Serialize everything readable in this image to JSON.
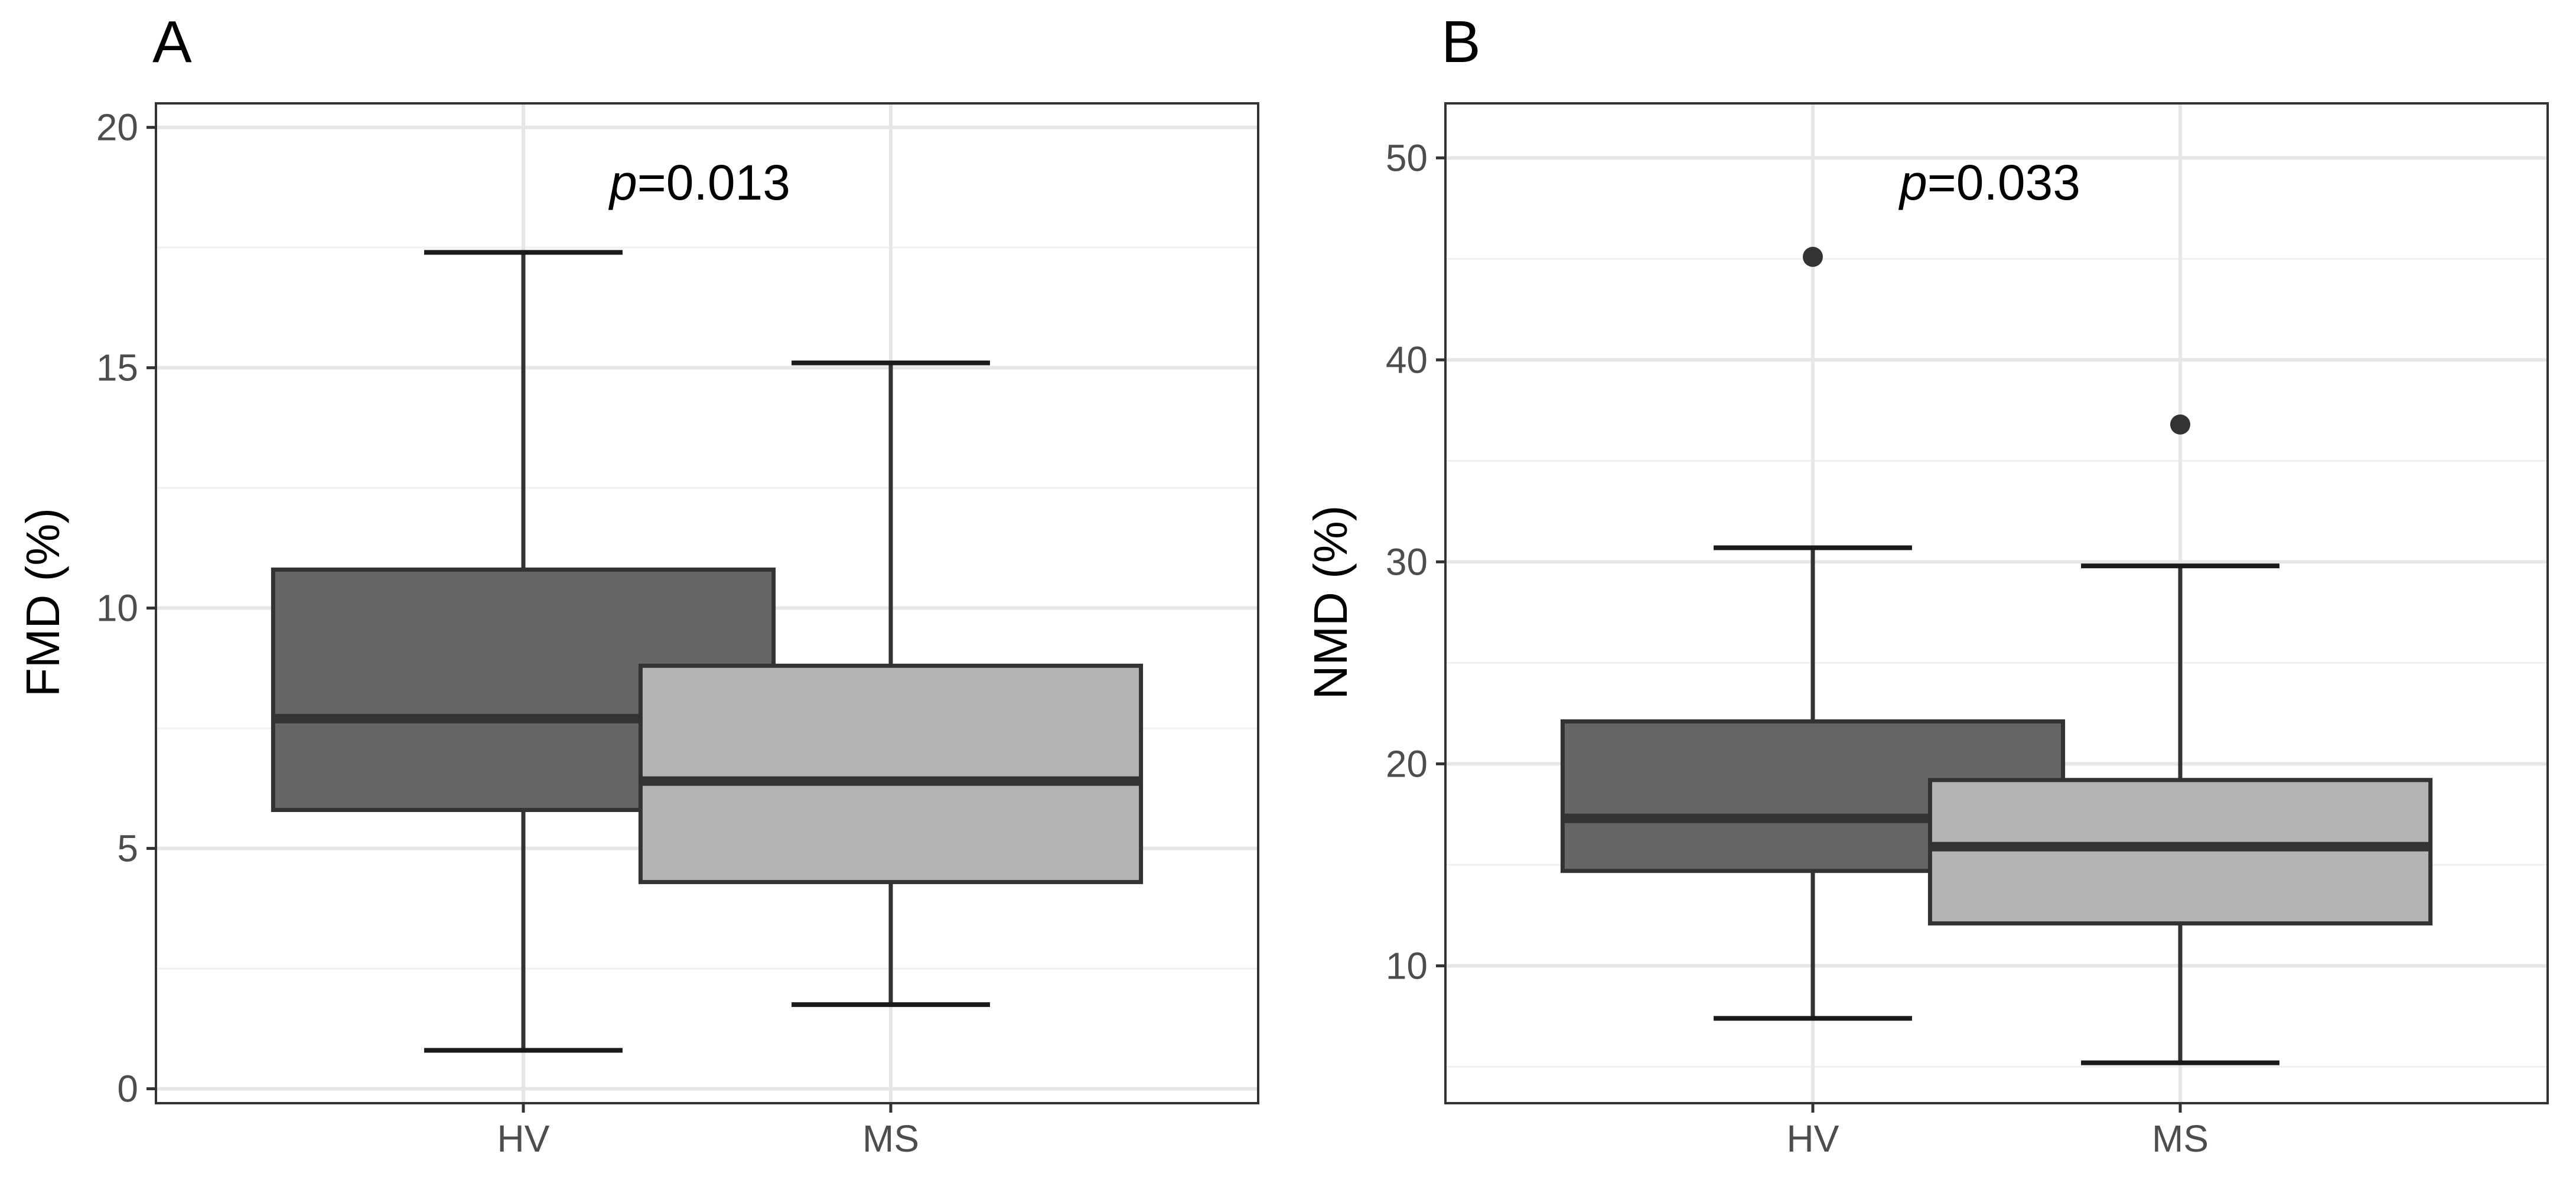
{
  "chart_data": [
    {
      "type": "boxplot",
      "panel": "A",
      "ylabel": "FMD (%)",
      "xlabel": "",
      "ylim": [
        -0.3,
        20.5
      ],
      "yticks": [
        0,
        5,
        10,
        15,
        20
      ],
      "ytick_labels": [
        "0",
        "5",
        "10",
        "15",
        "20"
      ],
      "grid": true,
      "annotation": {
        "prefix": "p",
        "text": "=0.013"
      },
      "categories": [
        "HV",
        "MS"
      ],
      "boxes": [
        {
          "category": "HV",
          "whisker_low": 0.8,
          "q1": 5.8,
          "median": 7.7,
          "q3": 10.8,
          "whisker_high": 17.4,
          "outliers": [],
          "fill": "#666666"
        },
        {
          "category": "MS",
          "whisker_low": 1.75,
          "q1": 4.3,
          "median": 6.4,
          "q3": 8.8,
          "whisker_high": 15.1,
          "outliers": [],
          "fill": "#b3b3b3"
        }
      ]
    },
    {
      "type": "boxplot",
      "panel": "B",
      "ylabel": "NMD (%)",
      "xlabel": "",
      "ylim": [
        3.2,
        52.7
      ],
      "yticks": [
        10,
        20,
        30,
        40,
        50
      ],
      "ytick_labels": [
        "10",
        "20",
        "30",
        "40",
        "50"
      ],
      "grid": true,
      "annotation": {
        "prefix": "p",
        "text": "=0.033"
      },
      "categories": [
        "HV",
        "MS"
      ],
      "boxes": [
        {
          "category": "HV",
          "whisker_low": 7.4,
          "q1": 14.7,
          "median": 17.3,
          "q3": 22.1,
          "whisker_high": 30.7,
          "outliers": [
            45.1
          ],
          "fill": "#666666"
        },
        {
          "category": "MS",
          "whisker_low": 5.2,
          "q1": 12.1,
          "median": 15.9,
          "q3": 19.2,
          "whisker_high": 29.8,
          "outliers": [
            36.8
          ],
          "fill": "#b3b3b3"
        }
      ]
    }
  ]
}
